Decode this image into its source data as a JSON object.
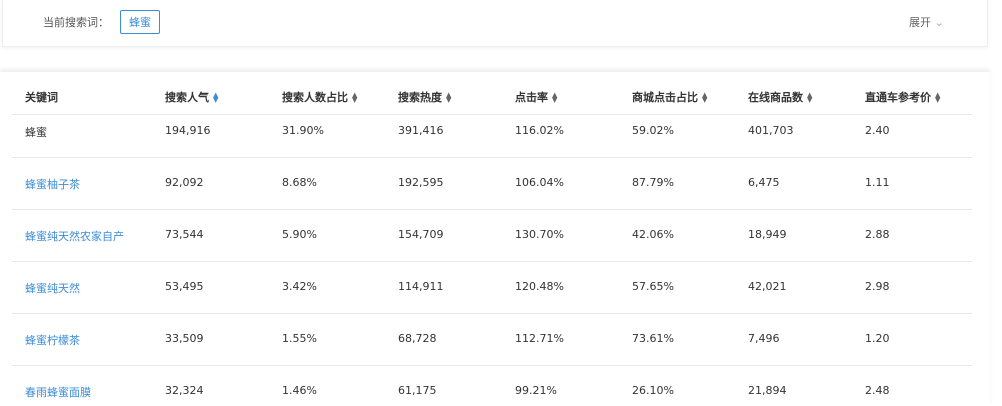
{
  "search_bar": {
    "label": "当前搜索词：",
    "keyword": "蜂蜜",
    "expand": "展开"
  },
  "table": {
    "columns": [
      "关键词",
      "搜索人气",
      "搜索人数占比",
      "搜索热度",
      "点击率",
      "商城点击占比",
      "在线商品数",
      "直通车参考价"
    ],
    "rows": [
      [
        "蜂蜜",
        "194,916",
        "31.90%",
        "391,416",
        "116.02%",
        "59.02%",
        "401,703",
        "2.40"
      ],
      [
        "蜂蜜柚子茶",
        "92,092",
        "8.68%",
        "192,595",
        "106.04%",
        "87.79%",
        "6,475",
        "1.11"
      ],
      [
        "蜂蜜纯天然农家自产",
        "73,544",
        "5.90%",
        "154,709",
        "130.70%",
        "42.06%",
        "18,949",
        "2.88"
      ],
      [
        "蜂蜜纯天然",
        "53,495",
        "3.42%",
        "114,911",
        "120.48%",
        "57.65%",
        "42,021",
        "2.98"
      ],
      [
        "蜂蜜柠檬茶",
        "33,509",
        "1.55%",
        "68,728",
        "112.71%",
        "73.61%",
        "7,496",
        "1.20"
      ],
      [
        "春雨蜂蜜面膜",
        "32,324",
        "1.46%",
        "61,175",
        "99.21%",
        "26.10%",
        "21,894",
        "2.48"
      ]
    ]
  }
}
